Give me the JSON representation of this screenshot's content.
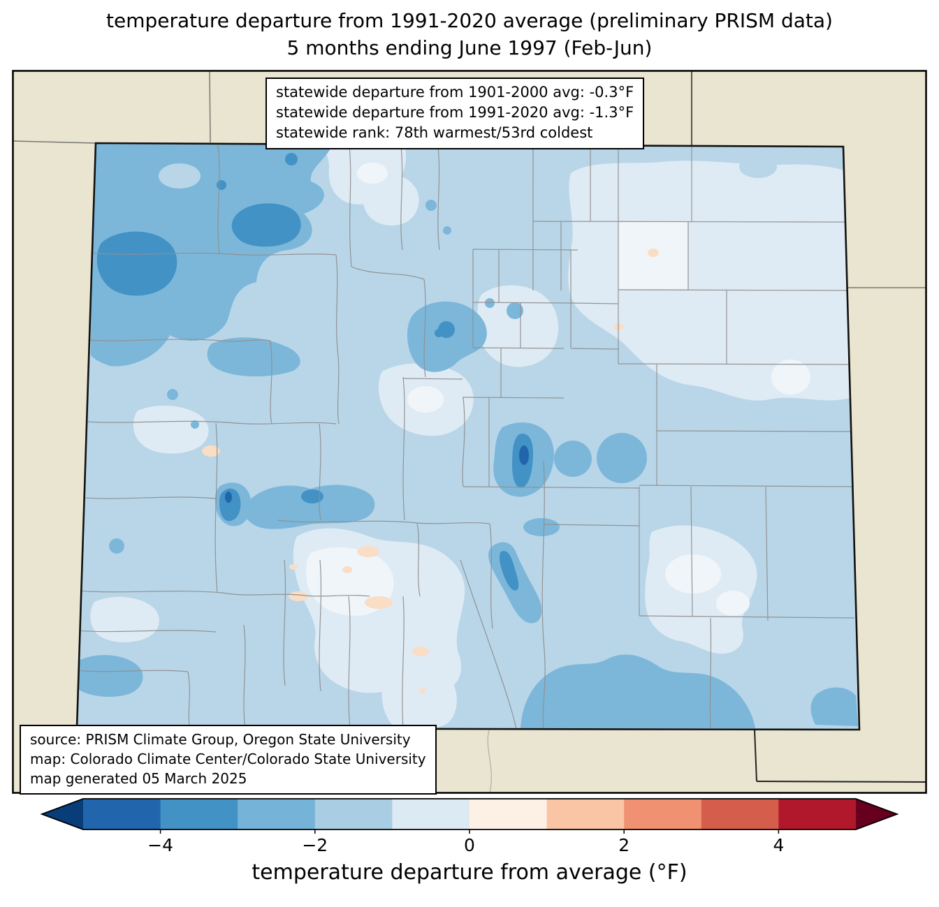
{
  "title": {
    "line1": "temperature departure from 1991-2020 average (preliminary PRISM data)",
    "line2": "5 months ending June 1997 (Feb-Jun)"
  },
  "stats_box": {
    "line1": "statewide departure from 1901-2000 avg: -0.3°F",
    "line2": "statewide departure from 1991-2020 avg: -1.3°F",
    "line3": "statewide rank: 78th warmest/53rd coldest"
  },
  "source_box": {
    "line1": "source: PRISM Climate Group, Oregon State University",
    "line2": "map: Colorado Climate Center/Colorado State University",
    "line3": "map generated 05 March 2025"
  },
  "colorbar": {
    "label": "temperature departure from average (°F)",
    "range": [
      -5,
      5
    ],
    "ticks": [
      {
        "label": "−4",
        "value": -4
      },
      {
        "label": "−2",
        "value": -2
      },
      {
        "label": "0",
        "value": 0
      },
      {
        "label": "2",
        "value": 2
      },
      {
        "label": "4",
        "value": 4
      }
    ],
    "segments": [
      {
        "from": -5,
        "to": -4,
        "color": "#2166ac"
      },
      {
        "from": -4,
        "to": -3,
        "color": "#4292c5"
      },
      {
        "from": -3,
        "to": -2,
        "color": "#75b4d8"
      },
      {
        "from": -2,
        "to": -1,
        "color": "#a9cde2"
      },
      {
        "from": -1,
        "to": 0,
        "color": "#dceaf3"
      },
      {
        "from": 0,
        "to": 1,
        "color": "#fdf1e6"
      },
      {
        "from": 1,
        "to": 2,
        "color": "#f9c5a4"
      },
      {
        "from": 2,
        "to": 3,
        "color": "#f09272"
      },
      {
        "from": 3,
        "to": 4,
        "color": "#d45d4b"
      },
      {
        "from": 4,
        "to": 5,
        "color": "#b2182b"
      }
    ],
    "left_arrow_color": "#083d7a",
    "right_arrow_color": "#67001f"
  },
  "map": {
    "palette": {
      "background_land": "#e9e5d0",
      "state_base": "#b9d6e9",
      "blue_2": "#7cb7da",
      "blue_3": "#4292c5",
      "blue_4": "#2166ac",
      "pale": "#dfebf4",
      "near_white": "#f0f5f9",
      "pink": "#f9ddc5",
      "county_line": "#8f8f8f",
      "state_border": "#111111",
      "neighbor_border": "#777770"
    }
  }
}
